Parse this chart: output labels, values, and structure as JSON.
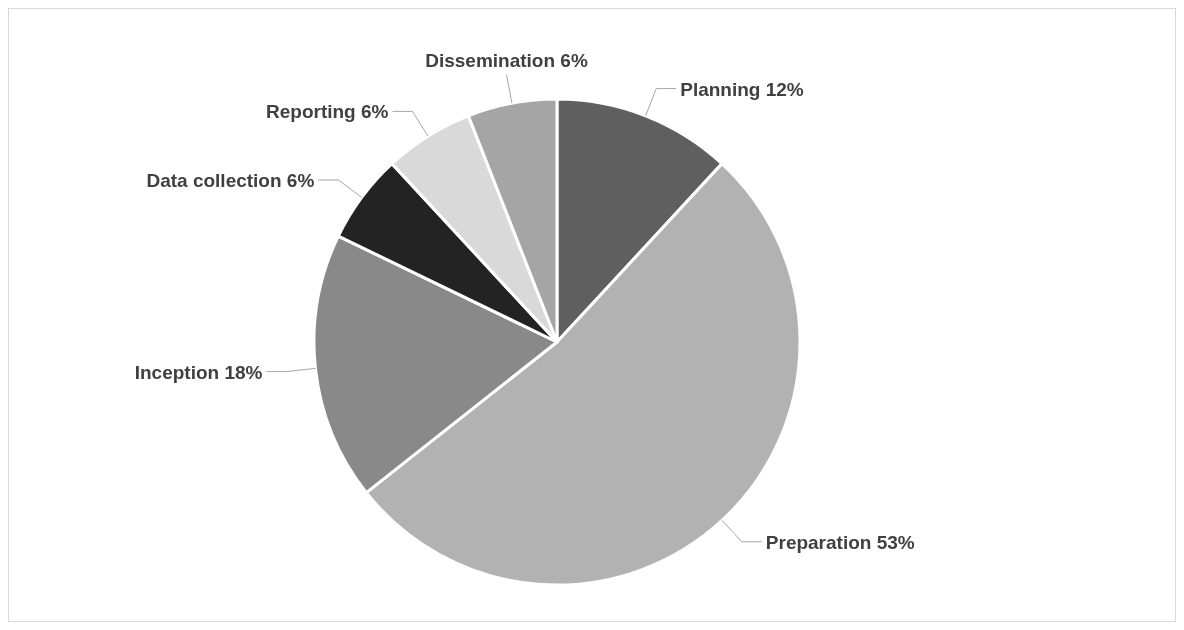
{
  "chart_data": {
    "type": "pie",
    "categories": [
      "Planning",
      "Preparation",
      "Inception",
      "Data collection",
      "Reporting",
      "Dissemination"
    ],
    "values": [
      12,
      53,
      18,
      6,
      6,
      6
    ],
    "value_labels": [
      "12%",
      "53%",
      "18%",
      "6%",
      "6%",
      "6%"
    ],
    "colors": [
      "#5f5f5f",
      "#b2b2b2",
      "#898989",
      "#232323",
      "#d9d9d9",
      "#a5a5a5"
    ]
  }
}
